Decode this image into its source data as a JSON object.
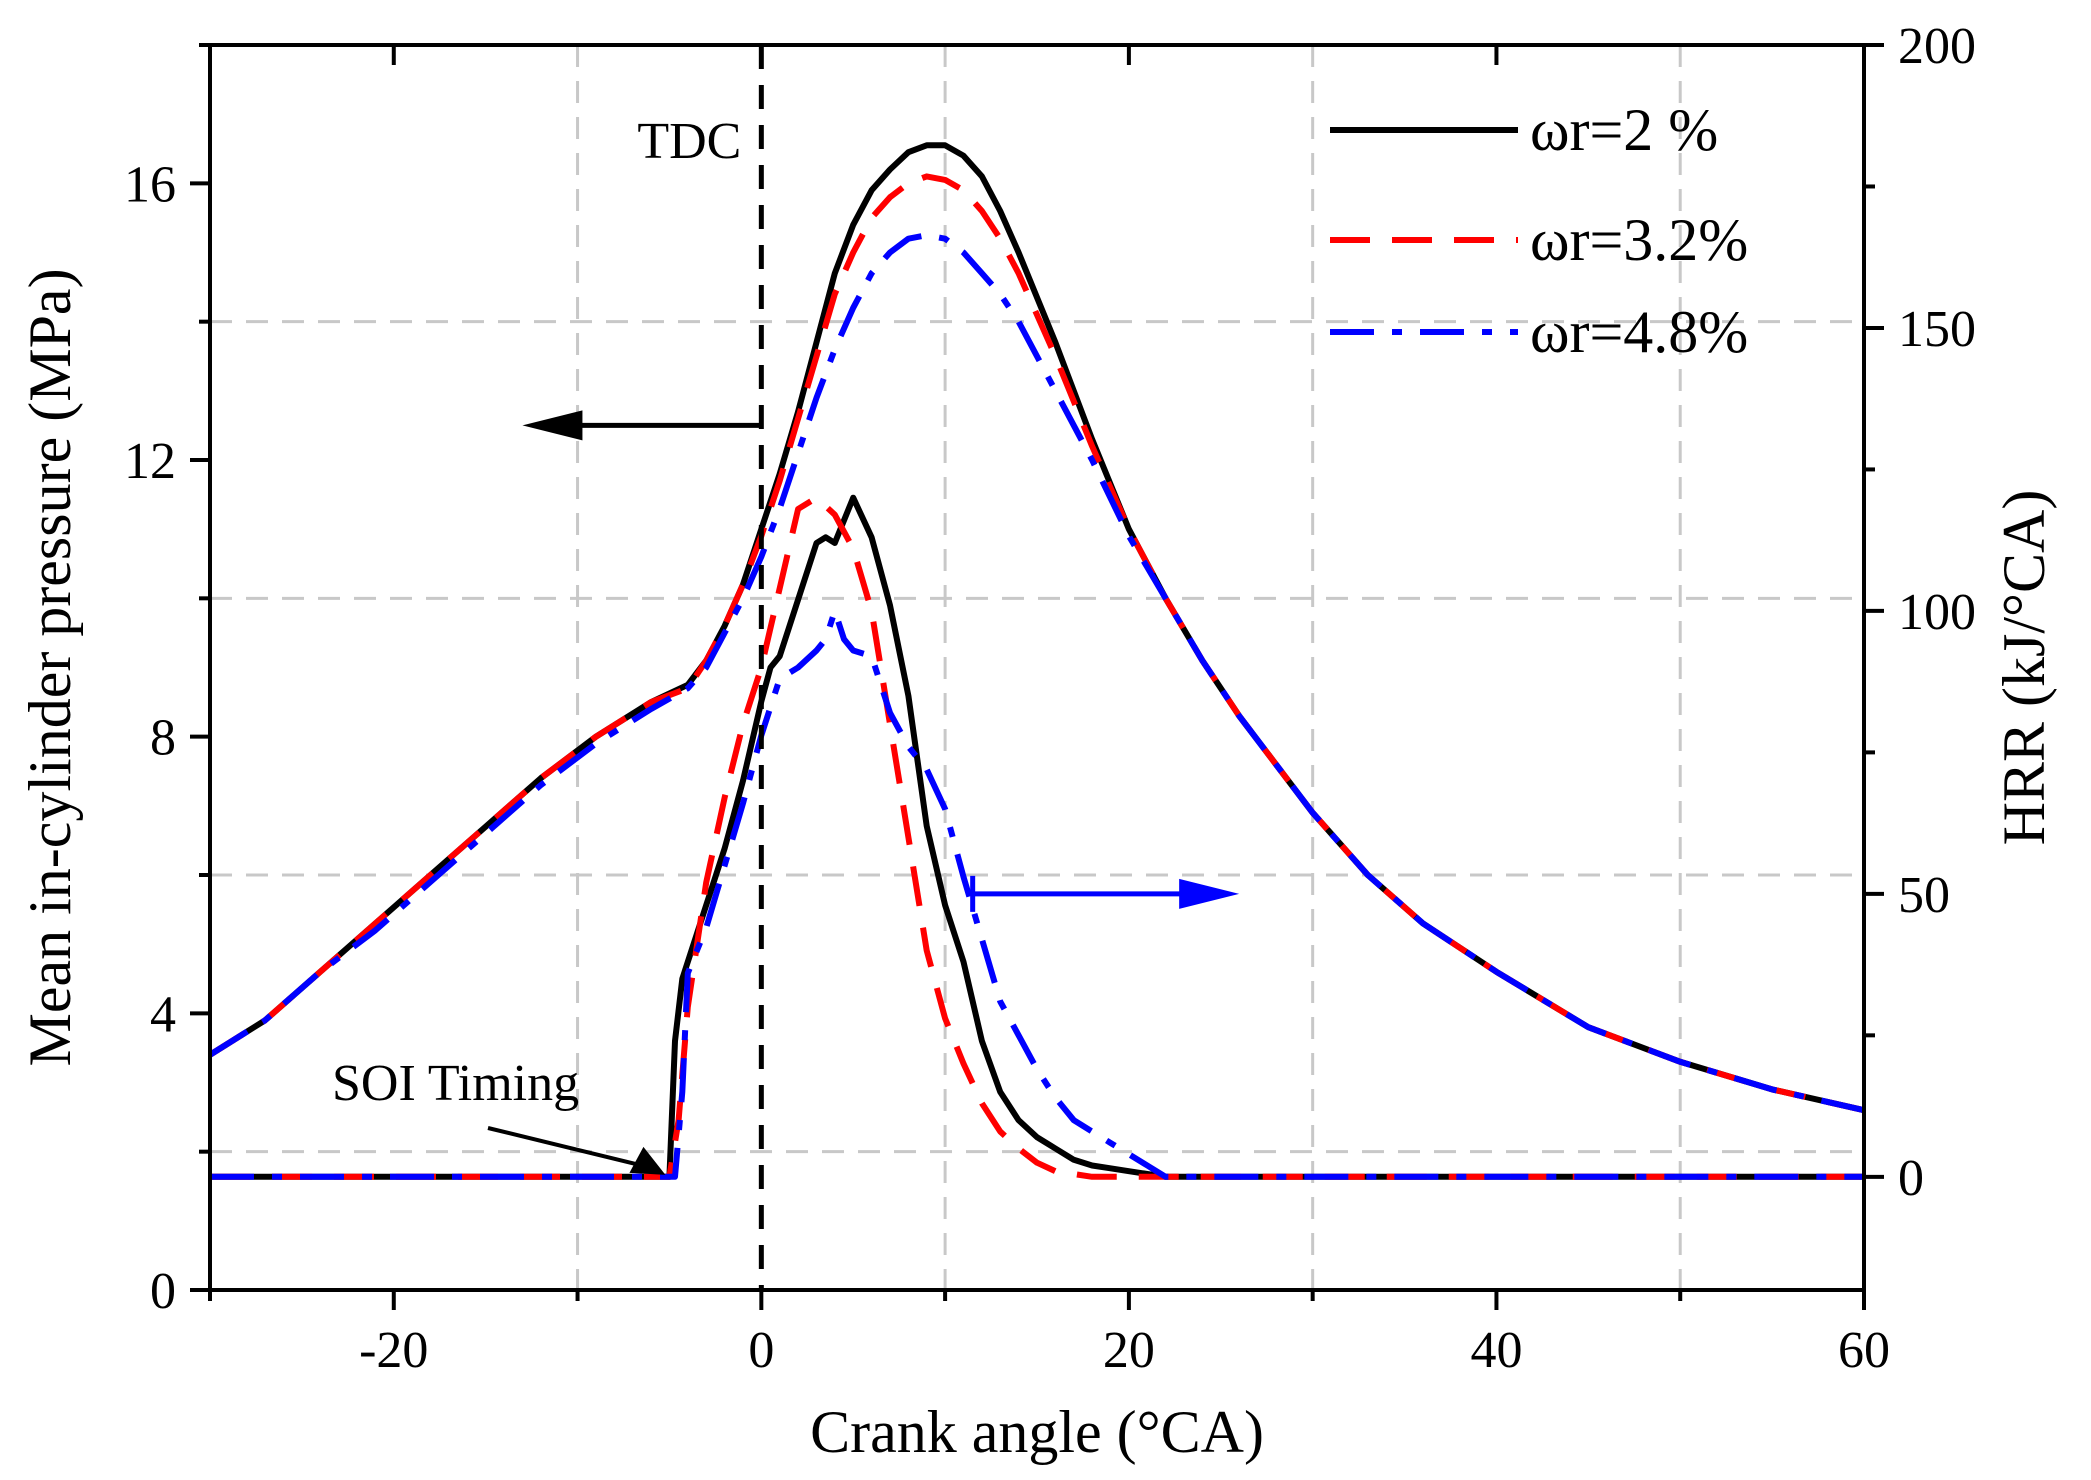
{
  "chart_data": {
    "type": "line",
    "title": "",
    "xlabel": "Crank angle (°CA)",
    "ylabel_left": "Mean in-cylinder pressure (MPa)",
    "ylabel_right": "HRR (kJ/°CA)",
    "xlim": [
      -30,
      60
    ],
    "ylim_left": [
      0,
      18
    ],
    "ylim_right": [
      -20,
      200
    ],
    "x_ticks": [
      -20,
      0,
      20,
      40,
      60
    ],
    "x_tick_labels": [
      "-20",
      "0",
      "20",
      "40",
      "60"
    ],
    "y_left_ticks": [
      0,
      4,
      8,
      12,
      16
    ],
    "y_left_tick_labels": [
      "0",
      "4",
      "8",
      "12",
      "16"
    ],
    "y_right_ticks": [
      0,
      50,
      100,
      150,
      200
    ],
    "y_right_tick_labels": [
      "0",
      "50",
      "100",
      "150",
      "200"
    ],
    "grid": true,
    "legend_position": "top-right",
    "annotations": {
      "tdc": {
        "label": "TDC",
        "x": 0
      },
      "soi": {
        "label": "SOI Timing",
        "x": -5,
        "hrr": 0
      },
      "left_arrow": {
        "from_x": 0,
        "to_x": -13,
        "pressure": 12.5
      },
      "right_arrow": {
        "from_x": 11.5,
        "to_x": 26,
        "hrr": 50
      }
    },
    "series": [
      {
        "name": "ωr=2 %",
        "color": "#000000",
        "dash": "solid",
        "pressure": [
          [
            -30,
            3.4
          ],
          [
            -27,
            3.9
          ],
          [
            -24,
            4.6
          ],
          [
            -21,
            5.3
          ],
          [
            -18,
            6.0
          ],
          [
            -15,
            6.7
          ],
          [
            -12,
            7.4
          ],
          [
            -9,
            8.0
          ],
          [
            -6,
            8.5
          ],
          [
            -4,
            8.75
          ],
          [
            -3,
            9.1
          ],
          [
            -2,
            9.6
          ],
          [
            -1,
            10.2
          ],
          [
            0,
            11.0
          ],
          [
            1,
            11.8
          ],
          [
            2,
            12.7
          ],
          [
            3,
            13.7
          ],
          [
            4,
            14.7
          ],
          [
            5,
            15.4
          ],
          [
            6,
            15.9
          ],
          [
            7,
            16.2
          ],
          [
            8,
            16.45
          ],
          [
            9,
            16.55
          ],
          [
            10,
            16.55
          ],
          [
            11,
            16.4
          ],
          [
            12,
            16.1
          ],
          [
            13,
            15.6
          ],
          [
            14,
            15.0
          ],
          [
            16,
            13.7
          ],
          [
            18,
            12.3
          ],
          [
            20,
            11.0
          ],
          [
            22,
            10.0
          ],
          [
            24,
            9.1
          ],
          [
            26,
            8.3
          ],
          [
            28,
            7.6
          ],
          [
            30,
            6.9
          ],
          [
            33,
            6.0
          ],
          [
            36,
            5.3
          ],
          [
            40,
            4.6
          ],
          [
            45,
            3.8
          ],
          [
            50,
            3.3
          ],
          [
            55,
            2.9
          ],
          [
            60,
            2.6
          ]
        ],
        "hrr": [
          [
            -30,
            0
          ],
          [
            -6,
            0
          ],
          [
            -5,
            0
          ],
          [
            -4.7,
            24
          ],
          [
            -4.3,
            35
          ],
          [
            -4,
            38
          ],
          [
            -3,
            48
          ],
          [
            -2,
            58
          ],
          [
            -1,
            70
          ],
          [
            0,
            84
          ],
          [
            0.5,
            90
          ],
          [
            1,
            92
          ],
          [
            2,
            102
          ],
          [
            3,
            112
          ],
          [
            3.5,
            113
          ],
          [
            4,
            112
          ],
          [
            5,
            120
          ],
          [
            6,
            113
          ],
          [
            7,
            101
          ],
          [
            8,
            85
          ],
          [
            9,
            62
          ],
          [
            10,
            48
          ],
          [
            11,
            38
          ],
          [
            12,
            24
          ],
          [
            13,
            15
          ],
          [
            14,
            10
          ],
          [
            15,
            7
          ],
          [
            16,
            5
          ],
          [
            17,
            3
          ],
          [
            18,
            2
          ],
          [
            19,
            1.5
          ],
          [
            20,
            1
          ],
          [
            21,
            0.5
          ],
          [
            22,
            0
          ],
          [
            30,
            0
          ],
          [
            40,
            0
          ],
          [
            50,
            0
          ],
          [
            60,
            0
          ]
        ]
      },
      {
        "name": "ωr=3.2%",
        "color": "#ff0000",
        "dash": "dashed",
        "pressure": [
          [
            -30,
            3.4
          ],
          [
            -27,
            3.9
          ],
          [
            -24,
            4.6
          ],
          [
            -21,
            5.3
          ],
          [
            -18,
            6.0
          ],
          [
            -15,
            6.7
          ],
          [
            -12,
            7.4
          ],
          [
            -9,
            8.0
          ],
          [
            -6,
            8.5
          ],
          [
            -4,
            8.7
          ],
          [
            -3,
            9.1
          ],
          [
            -2,
            9.6
          ],
          [
            -1,
            10.2
          ],
          [
            0,
            10.9
          ],
          [
            1,
            11.7
          ],
          [
            2,
            12.6
          ],
          [
            3,
            13.5
          ],
          [
            4,
            14.4
          ],
          [
            5,
            15.0
          ],
          [
            6,
            15.5
          ],
          [
            7,
            15.8
          ],
          [
            8,
            16.0
          ],
          [
            9,
            16.1
          ],
          [
            10,
            16.05
          ],
          [
            11,
            15.9
          ],
          [
            12,
            15.6
          ],
          [
            13,
            15.2
          ],
          [
            14,
            14.7
          ],
          [
            16,
            13.5
          ],
          [
            18,
            12.2
          ],
          [
            20,
            11.0
          ],
          [
            22,
            10.0
          ],
          [
            24,
            9.1
          ],
          [
            26,
            8.3
          ],
          [
            28,
            7.6
          ],
          [
            30,
            6.9
          ],
          [
            33,
            6.0
          ],
          [
            36,
            5.3
          ],
          [
            40,
            4.6
          ],
          [
            45,
            3.8
          ],
          [
            50,
            3.3
          ],
          [
            55,
            2.9
          ],
          [
            60,
            2.6
          ]
        ],
        "hrr": [
          [
            -30,
            0
          ],
          [
            -6,
            0
          ],
          [
            -5,
            0
          ],
          [
            -4.5,
            10
          ],
          [
            -4,
            30
          ],
          [
            -3,
            52
          ],
          [
            -2,
            67
          ],
          [
            -1,
            80
          ],
          [
            0,
            90
          ],
          [
            1,
            104
          ],
          [
            2,
            118
          ],
          [
            3,
            120
          ],
          [
            4,
            117
          ],
          [
            5,
            111
          ],
          [
            6,
            100
          ],
          [
            7,
            80
          ],
          [
            8,
            60
          ],
          [
            9,
            40
          ],
          [
            10,
            28
          ],
          [
            11,
            20
          ],
          [
            12,
            13
          ],
          [
            13,
            8
          ],
          [
            14,
            5
          ],
          [
            15,
            2.5
          ],
          [
            16,
            1
          ],
          [
            17,
            0.5
          ],
          [
            18,
            0
          ],
          [
            30,
            0
          ],
          [
            40,
            0
          ],
          [
            50,
            0
          ],
          [
            60,
            0
          ]
        ]
      },
      {
        "name": "ωr=4.8%",
        "color": "#0000ff",
        "dash": "dashdot",
        "pressure": [
          [
            -30,
            3.4
          ],
          [
            -27,
            3.9
          ],
          [
            -24,
            4.6
          ],
          [
            -21,
            5.2
          ],
          [
            -18,
            5.9
          ],
          [
            -15,
            6.6
          ],
          [
            -12,
            7.3
          ],
          [
            -9,
            7.9
          ],
          [
            -6,
            8.4
          ],
          [
            -4,
            8.7
          ],
          [
            -3,
            9.0
          ],
          [
            -2,
            9.5
          ],
          [
            -1,
            10.0
          ],
          [
            0,
            10.6
          ],
          [
            1,
            11.3
          ],
          [
            2,
            12.1
          ],
          [
            3,
            12.9
          ],
          [
            4,
            13.6
          ],
          [
            5,
            14.2
          ],
          [
            6,
            14.7
          ],
          [
            7,
            15.0
          ],
          [
            8,
            15.2
          ],
          [
            9,
            15.25
          ],
          [
            10,
            15.2
          ],
          [
            11,
            15.0
          ],
          [
            12,
            14.7
          ],
          [
            13,
            14.4
          ],
          [
            14,
            14.0
          ],
          [
            16,
            13.0
          ],
          [
            18,
            12.0
          ],
          [
            20,
            10.9
          ],
          [
            22,
            10.0
          ],
          [
            24,
            9.1
          ],
          [
            26,
            8.3
          ],
          [
            28,
            7.6
          ],
          [
            30,
            6.9
          ],
          [
            33,
            6.0
          ],
          [
            36,
            5.3
          ],
          [
            40,
            4.6
          ],
          [
            45,
            3.8
          ],
          [
            50,
            3.3
          ],
          [
            55,
            2.9
          ],
          [
            60,
            2.6
          ]
        ],
        "hrr": [
          [
            -30,
            0
          ],
          [
            -6,
            0
          ],
          [
            -4.7,
            0
          ],
          [
            -4.3,
            15
          ],
          [
            -4,
            36
          ],
          [
            -3,
            44
          ],
          [
            -2,
            55
          ],
          [
            -1,
            66
          ],
          [
            0,
            78
          ],
          [
            1,
            88
          ],
          [
            2,
            90
          ],
          [
            3,
            93
          ],
          [
            3.5,
            95
          ],
          [
            4,
            100
          ],
          [
            4.5,
            95
          ],
          [
            5,
            93
          ],
          [
            6,
            92
          ],
          [
            7,
            82
          ],
          [
            8,
            76
          ],
          [
            9,
            72
          ],
          [
            10,
            65
          ],
          [
            11,
            53
          ],
          [
            12,
            42
          ],
          [
            13,
            31
          ],
          [
            14,
            25
          ],
          [
            15,
            19
          ],
          [
            16,
            14
          ],
          [
            17,
            10
          ],
          [
            18,
            8
          ],
          [
            19,
            6
          ],
          [
            20,
            4
          ],
          [
            21,
            2
          ],
          [
            22,
            0
          ],
          [
            30,
            0
          ],
          [
            40,
            0
          ],
          [
            50,
            0
          ],
          [
            60,
            0
          ]
        ]
      }
    ]
  }
}
